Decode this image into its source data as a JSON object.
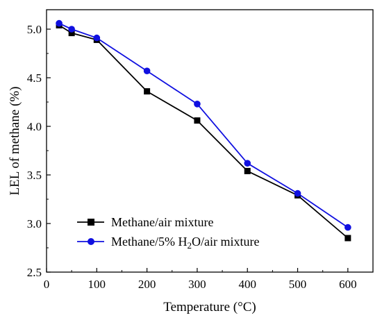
{
  "chart_data": {
    "type": "line",
    "title": "",
    "xlabel": "Temperature (°C)",
    "ylabel": "LEL of methane (%)",
    "xlim": [
      0,
      650
    ],
    "ylim": [
      2.5,
      5.2
    ],
    "x_ticks": [
      "0",
      "100",
      "200",
      "300",
      "400",
      "500",
      "600"
    ],
    "y_ticks": [
      "2.5",
      "3.0",
      "3.5",
      "4.0",
      "4.5",
      "5.0"
    ],
    "grid": false,
    "legend_position": "bottom-left",
    "series": [
      {
        "name": "Methane/air mixture",
        "legend_main": "Methane/air mixture",
        "color": "#000000",
        "marker": "square",
        "x": [
          25,
          50,
          100,
          200,
          300,
          400,
          500,
          600
        ],
        "y": [
          5.04,
          4.96,
          4.89,
          4.36,
          4.06,
          3.54,
          3.29,
          2.85
        ]
      },
      {
        "name": "Methane/5% H2O/air mixture",
        "legend_main": "Methane/5% H",
        "legend_sub": "2",
        "legend_rest": "O/air mixture",
        "color": "#1010e0",
        "marker": "circle",
        "x": [
          25,
          50,
          100,
          200,
          300,
          400,
          500,
          600
        ],
        "y": [
          5.06,
          5.0,
          4.91,
          4.57,
          4.23,
          3.62,
          3.31,
          2.96
        ]
      }
    ]
  }
}
